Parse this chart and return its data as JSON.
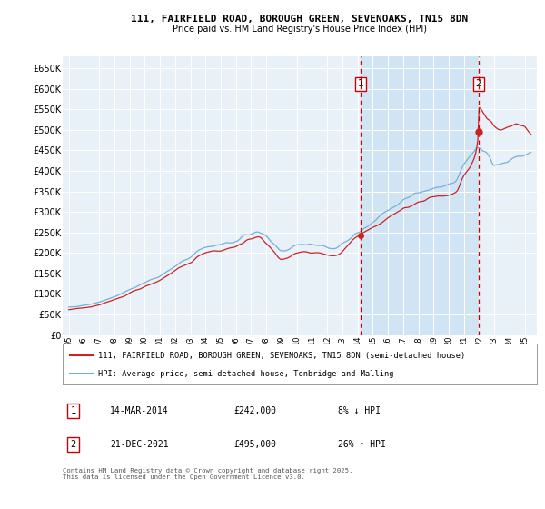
{
  "title_line1": "111, FAIRFIELD ROAD, BOROUGH GREEN, SEVENOAKS, TN15 8DN",
  "title_line2": "Price paid vs. HM Land Registry's House Price Index (HPI)",
  "ylim": [
    0,
    680000
  ],
  "yticks": [
    0,
    50000,
    100000,
    150000,
    200000,
    250000,
    300000,
    350000,
    400000,
    450000,
    500000,
    550000,
    600000,
    650000
  ],
  "ytick_labels": [
    "£0",
    "£50K",
    "£100K",
    "£150K",
    "£200K",
    "£250K",
    "£300K",
    "£350K",
    "£400K",
    "£450K",
    "£500K",
    "£550K",
    "£600K",
    "£650K"
  ],
  "hpi_color": "#7aaed6",
  "price_color": "#cc2222",
  "bg_color": "#e8f0f8",
  "grid_color": "#ffffff",
  "shade_color": "#d0e4f4",
  "vline_color": "#cc0000",
  "marker1_x": 2014.2,
  "marker1_price": 242000,
  "marker2_x": 2021.97,
  "marker2_price": 495000,
  "legend_line1": "111, FAIRFIELD ROAD, BOROUGH GREEN, SEVENOAKS, TN15 8DN (semi-detached house)",
  "legend_line2": "HPI: Average price, semi-detached house, Tonbridge and Malling",
  "table_row1": [
    "1",
    "14-MAR-2014",
    "£242,000",
    "8% ↓ HPI"
  ],
  "table_row2": [
    "2",
    "21-DEC-2021",
    "£495,000",
    "26% ↑ HPI"
  ],
  "footer": "Contains HM Land Registry data © Crown copyright and database right 2025.\nThis data is licensed under the Open Government Licence v3.0.",
  "xlim_left": 1994.6,
  "xlim_right": 2025.8,
  "xtick_years": [
    1995,
    1996,
    1997,
    1998,
    1999,
    2000,
    2001,
    2002,
    2003,
    2004,
    2005,
    2006,
    2007,
    2008,
    2009,
    2010,
    2011,
    2012,
    2013,
    2014,
    2015,
    2016,
    2017,
    2018,
    2019,
    2020,
    2021,
    2022,
    2023,
    2024,
    2025
  ]
}
